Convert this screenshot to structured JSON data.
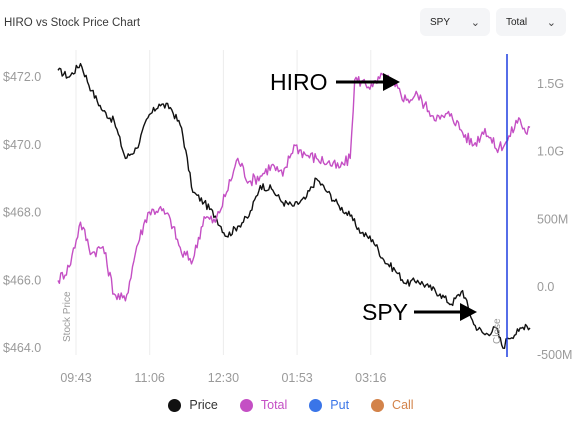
{
  "header": {
    "title": "HIRO vs Stock Price Chart"
  },
  "controls": {
    "symbol_select": {
      "value": "SPY",
      "icon": "chevron-down-icon"
    },
    "type_select": {
      "value": "Total",
      "icon": "chevron-down-icon"
    }
  },
  "annotations": {
    "hiro_label": "HIRO",
    "spy_label": "SPY",
    "marker_label": "Close"
  },
  "legend": [
    {
      "label": "Price",
      "color": "#111111",
      "text_color": "#333333"
    },
    {
      "label": "Total",
      "color": "#c44fc4",
      "text_color": "#c44fc4"
    },
    {
      "label": "Put",
      "color": "#3a75e8",
      "text_color": "#3a75e8"
    },
    {
      "label": "Call",
      "color": "#d3834a",
      "text_color": "#d3834a"
    }
  ],
  "colors": {
    "price": "#111111",
    "total": "#c44fc4",
    "marker": "#1f3fe0",
    "grid": "#ececec"
  },
  "chart_data": {
    "type": "line",
    "title": "",
    "x_ticks": [
      "09:43",
      "11:06",
      "12:30",
      "01:53",
      "03:16"
    ],
    "y_left": {
      "label": "Stock Price",
      "ticks": [
        "$472.0",
        "$470.0",
        "$468.0",
        "$466.0",
        "$464.0"
      ],
      "range": [
        463.8,
        472.8
      ]
    },
    "y_right": {
      "label": "",
      "ticks": [
        "1.5G",
        "1.0G",
        "500M",
        "0.0",
        "-500M"
      ],
      "range": [
        -500000000,
        1750000000
      ]
    },
    "x_range_minutes": [
      0,
      420
    ],
    "series": [
      {
        "name": "Price",
        "axis": "left",
        "x": [
          0,
          10,
          20,
          30,
          40,
          50,
          60,
          70,
          80,
          90,
          100,
          110,
          120,
          130,
          140,
          150,
          160,
          170,
          180,
          190,
          200,
          210,
          220,
          230,
          240,
          250,
          260,
          270,
          280,
          290,
          300,
          310,
          320,
          330,
          340,
          350,
          360,
          370,
          380,
          390,
          396,
          400,
          410,
          416,
          420
        ],
        "values": [
          472.2,
          472.0,
          472.4,
          471.6,
          471.0,
          470.7,
          469.6,
          469.9,
          470.8,
          471.2,
          471.1,
          470.5,
          468.6,
          468.3,
          467.9,
          467.3,
          467.6,
          467.9,
          468.8,
          468.7,
          468.3,
          468.2,
          468.4,
          469.0,
          468.6,
          468.2,
          467.9,
          467.4,
          467.2,
          466.6,
          466.3,
          465.9,
          466.0,
          465.8,
          465.6,
          465.3,
          465.7,
          464.7,
          464.4,
          464.6,
          464.0,
          464.3,
          464.5,
          464.7,
          464.6
        ]
      },
      {
        "name": "Total",
        "axis": "right",
        "x": [
          0,
          10,
          20,
          30,
          40,
          50,
          60,
          70,
          80,
          90,
          100,
          110,
          120,
          130,
          140,
          150,
          160,
          170,
          180,
          190,
          200,
          210,
          220,
          230,
          240,
          250,
          260,
          264,
          270,
          280,
          290,
          300,
          310,
          320,
          330,
          340,
          350,
          360,
          370,
          380,
          390,
          400,
          410,
          416,
          420
        ],
        "values": [
          50000000,
          150000000,
          480000000,
          250000000,
          300000000,
          -50000000,
          -100000000,
          300000000,
          550000000,
          580000000,
          500000000,
          250000000,
          200000000,
          520000000,
          480000000,
          700000000,
          950000000,
          780000000,
          820000000,
          900000000,
          820000000,
          1050000000,
          980000000,
          950000000,
          920000000,
          880000000,
          950000000,
          1530000000,
          1520000000,
          1480000000,
          1560000000,
          1480000000,
          1380000000,
          1420000000,
          1300000000,
          1240000000,
          1280000000,
          1140000000,
          1050000000,
          1170000000,
          1020000000,
          1080000000,
          1250000000,
          1140000000,
          1180000000
        ]
      }
    ],
    "grid": true,
    "legend_position": "bottom"
  }
}
